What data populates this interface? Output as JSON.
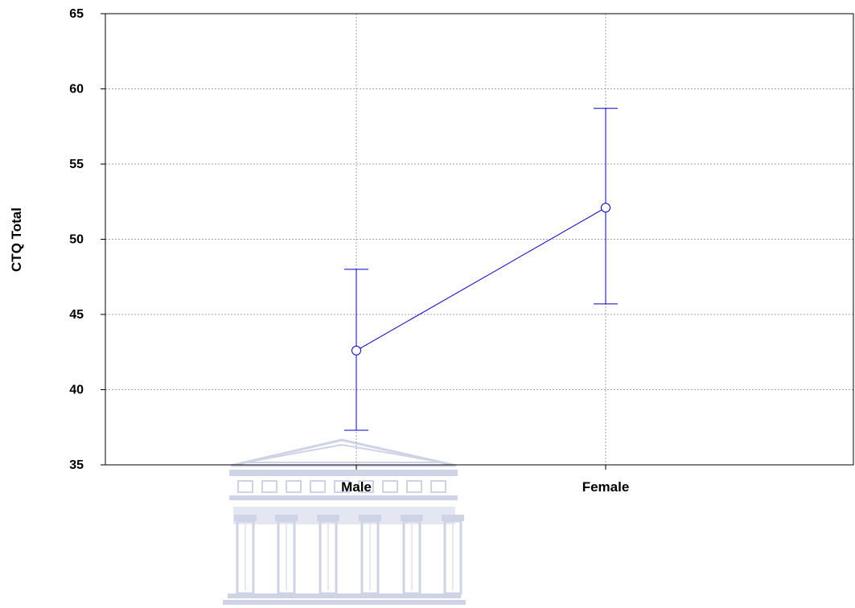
{
  "chart_data": {
    "type": "line",
    "categories": [
      "Male",
      "Female"
    ],
    "series": [
      {
        "means": [
          42.6,
          52.1
        ],
        "ci_lower": [
          37.3,
          45.7
        ],
        "ci_upper": [
          48.0,
          58.7
        ]
      }
    ],
    "xlabel": "",
    "ylabel": "CTQ Total",
    "ylim": [
      35,
      65
    ],
    "yticks": [
      35,
      40,
      45,
      50,
      55,
      60,
      65
    ],
    "grid": true,
    "error_bars": true,
    "marker": "open-circle",
    "colors": {
      "series": "#0000cc",
      "grid": "#a0a0a0",
      "axis": "#000000",
      "watermark": "#cfd3e6"
    }
  }
}
